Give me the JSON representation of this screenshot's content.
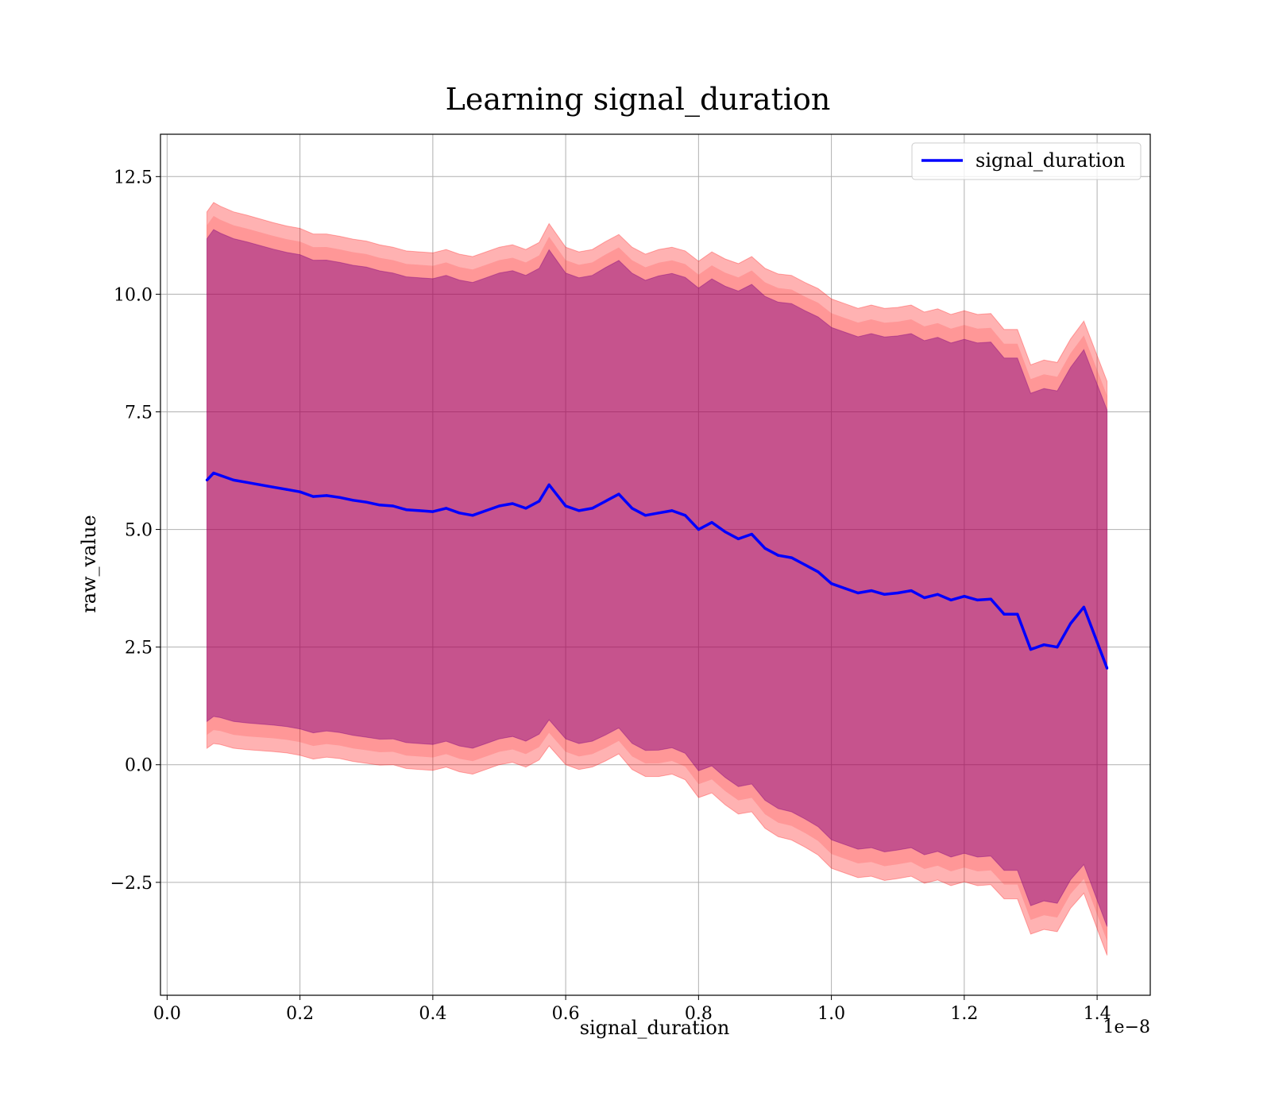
{
  "chart_data": {
    "type": "line",
    "title": "Learning signal_duration",
    "xlabel": "signal_duration",
    "ylabel": "raw_value",
    "x_offset_label": "1e−8",
    "x_scale_factor": 1e-08,
    "xlim": [
      -0.01,
      1.48
    ],
    "ylim": [
      -4.9,
      13.4
    ],
    "xticks": [
      0.0,
      0.2,
      0.4,
      0.6,
      0.8,
      1.0,
      1.2,
      1.4
    ],
    "xtick_labels": [
      "0.0",
      "0.2",
      "0.4",
      "0.6",
      "0.8",
      "1.0",
      "1.2",
      "1.4"
    ],
    "yticks": [
      -2.5,
      0.0,
      2.5,
      5.0,
      7.5,
      10.0,
      12.5
    ],
    "ytick_labels": [
      "−2.5",
      "0.0",
      "2.5",
      "5.0",
      "7.5",
      "10.0",
      "12.5"
    ],
    "grid": true,
    "legend_placement": "top-right",
    "colors": {
      "line": "#0000ff",
      "outer_band": "#ff0000",
      "inner_band": "#800080",
      "grid": "#b0b0b0"
    },
    "series": [
      {
        "name": "signal_duration",
        "x": [
          0.06,
          0.07,
          0.08,
          0.1,
          0.12,
          0.14,
          0.16,
          0.18,
          0.2,
          0.22,
          0.24,
          0.26,
          0.28,
          0.3,
          0.32,
          0.34,
          0.36,
          0.38,
          0.4,
          0.42,
          0.44,
          0.46,
          0.48,
          0.5,
          0.52,
          0.54,
          0.56,
          0.575,
          0.6,
          0.62,
          0.64,
          0.66,
          0.68,
          0.7,
          0.72,
          0.74,
          0.76,
          0.78,
          0.8,
          0.82,
          0.84,
          0.86,
          0.88,
          0.9,
          0.92,
          0.94,
          0.96,
          0.98,
          1.0,
          1.02,
          1.04,
          1.06,
          1.08,
          1.1,
          1.12,
          1.14,
          1.16,
          1.18,
          1.2,
          1.22,
          1.24,
          1.26,
          1.28,
          1.3,
          1.32,
          1.34,
          1.36,
          1.38,
          1.415
        ],
        "y": [
          6.05,
          6.2,
          6.15,
          6.05,
          6.0,
          5.95,
          5.9,
          5.85,
          5.8,
          5.7,
          5.72,
          5.68,
          5.62,
          5.58,
          5.52,
          5.5,
          5.42,
          5.4,
          5.38,
          5.45,
          5.35,
          5.3,
          5.4,
          5.5,
          5.55,
          5.45,
          5.6,
          5.95,
          5.5,
          5.4,
          5.45,
          5.6,
          5.75,
          5.45,
          5.3,
          5.35,
          5.4,
          5.3,
          5.0,
          5.15,
          4.95,
          4.8,
          4.9,
          4.6,
          4.45,
          4.4,
          4.25,
          4.1,
          3.85,
          3.75,
          3.65,
          3.7,
          3.62,
          3.65,
          3.7,
          3.55,
          3.62,
          3.5,
          3.58,
          3.5,
          3.52,
          3.2,
          3.2,
          2.45,
          2.55,
          2.5,
          3.0,
          3.35,
          2.05
        ],
        "std": [
          5.7,
          5.75,
          5.72,
          5.7,
          5.68,
          5.65,
          5.62,
          5.6,
          5.6,
          5.58,
          5.56,
          5.55,
          5.55,
          5.55,
          5.53,
          5.5,
          5.5,
          5.5,
          5.5,
          5.5,
          5.5,
          5.5,
          5.5,
          5.5,
          5.5,
          5.5,
          5.5,
          5.55,
          5.5,
          5.5,
          5.5,
          5.52,
          5.52,
          5.55,
          5.55,
          5.6,
          5.6,
          5.62,
          5.7,
          5.75,
          5.8,
          5.85,
          5.9,
          5.95,
          5.98,
          6.0,
          6.0,
          6.02,
          6.05,
          6.05,
          6.05,
          6.07,
          6.08,
          6.07,
          6.07,
          6.07,
          6.07,
          6.07,
          6.07,
          6.07,
          6.07,
          6.05,
          6.05,
          6.05,
          6.05,
          6.05,
          6.05,
          6.08,
          6.1
        ]
      }
    ]
  }
}
